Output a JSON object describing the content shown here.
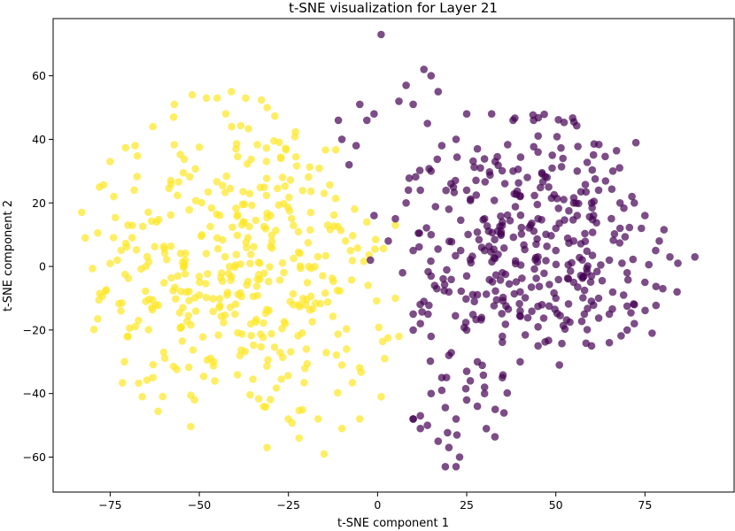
{
  "chart_data": {
    "type": "scatter",
    "title": "t-SNE visualization for Layer 21",
    "xlabel": "t-SNE component 1",
    "ylabel": "t-SNE component 2",
    "xlim": [
      -91,
      100
    ],
    "ylim": [
      -71,
      78
    ],
    "xticks": [
      -75,
      -50,
      -25,
      0,
      25,
      50,
      75
    ],
    "yticks": [
      -60,
      -40,
      -20,
      0,
      20,
      40,
      60
    ],
    "grid": false,
    "legend": "none",
    "series": [
      {
        "color": "#fde725",
        "count": 420,
        "x_mean": -38,
        "y_mean": 0,
        "x_spread": 22,
        "y_spread": 26,
        "points": [
          [
            -83,
            17
          ],
          [
            -82,
            9
          ],
          [
            -78,
            25
          ],
          [
            -75,
            33
          ],
          [
            -74,
            22
          ],
          [
            -73,
            2
          ],
          [
            -72,
            -14
          ],
          [
            -71,
            -30
          ],
          [
            -70,
            -22
          ],
          [
            -70,
            13
          ],
          [
            -68,
            38
          ],
          [
            -66,
            -41
          ],
          [
            -65,
            0
          ],
          [
            -63,
            -35
          ],
          [
            -60,
            -27
          ],
          [
            -57,
            51
          ],
          [
            -55,
            -19
          ],
          [
            -52,
            54
          ],
          [
            -48,
            53
          ],
          [
            -45,
            53
          ],
          [
            -41,
            55
          ],
          [
            -37,
            53
          ],
          [
            -31,
            50
          ],
          [
            -31,
            -57
          ],
          [
            -25,
            -48
          ],
          [
            -22,
            -54
          ],
          [
            -15,
            -59
          ],
          [
            -10,
            -51
          ],
          [
            -5,
            -48
          ],
          [
            1,
            -41
          ],
          [
            2,
            -29
          ],
          [
            5,
            -10
          ],
          [
            6,
            -22
          ],
          [
            5,
            13
          ],
          [
            -3,
            14
          ],
          [
            -9,
            8
          ],
          [
            -14,
            13
          ],
          [
            -15,
            23
          ],
          [
            -20,
            -26
          ],
          [
            -33,
            -4
          ],
          [
            -40,
            -15
          ],
          [
            -46,
            -30
          ],
          [
            -50,
            -9
          ],
          [
            -56,
            -3
          ],
          [
            -58,
            27
          ],
          [
            -62,
            14
          ],
          [
            -63,
            44
          ],
          [
            -65,
            -11
          ],
          [
            -45,
            9
          ],
          [
            -30,
            16
          ],
          [
            -22,
            -12
          ],
          [
            -10,
            -31
          ]
        ]
      },
      {
        "color": "#440154",
        "count": 430,
        "x_mean": 42,
        "y_mean": 5,
        "x_spread": 20,
        "y_spread": 28,
        "points": [
          [
            1,
            73
          ],
          [
            -11,
            46
          ],
          [
            -10,
            40
          ],
          [
            -8,
            32
          ],
          [
            -6,
            38
          ],
          [
            -5,
            51
          ],
          [
            -3,
            46
          ],
          [
            -1,
            48
          ],
          [
            -1,
            16
          ],
          [
            -2,
            2
          ],
          [
            10,
            -20
          ],
          [
            12,
            -18
          ],
          [
            13,
            -11
          ],
          [
            16,
            -6
          ],
          [
            18,
            -35
          ],
          [
            10,
            -48
          ],
          [
            12,
            -51
          ],
          [
            13,
            62
          ],
          [
            15,
            60
          ],
          [
            17,
            55
          ],
          [
            14,
            45
          ],
          [
            6,
            52
          ],
          [
            8,
            57
          ],
          [
            10,
            51
          ],
          [
            25,
            48
          ],
          [
            32,
            48
          ],
          [
            38,
            46
          ],
          [
            45,
            36
          ],
          [
            49,
            35
          ],
          [
            52,
            34
          ],
          [
            56,
            30
          ],
          [
            60,
            20
          ],
          [
            66,
            30
          ],
          [
            72,
            20
          ],
          [
            75,
            16
          ],
          [
            79,
            8
          ],
          [
            80,
            -7
          ],
          [
            82,
            3
          ],
          [
            84,
            -8
          ],
          [
            89,
            3
          ],
          [
            77,
            -21
          ],
          [
            72,
            -18
          ],
          [
            69,
            -9
          ],
          [
            65,
            -24
          ],
          [
            60,
            -25
          ],
          [
            51,
            -31
          ],
          [
            45,
            -19
          ],
          [
            40,
            -14
          ],
          [
            35,
            -22
          ],
          [
            33,
            -45
          ],
          [
            28,
            -44
          ],
          [
            26,
            -36
          ],
          [
            22,
            -48
          ],
          [
            20,
            -57
          ],
          [
            23,
            -60
          ],
          [
            22,
            -63
          ],
          [
            19,
            -63
          ],
          [
            17,
            -55
          ],
          [
            14,
            -50
          ],
          [
            12,
            -47
          ],
          [
            10,
            -48
          ],
          [
            15,
            -40
          ],
          [
            18,
            -39
          ],
          [
            25,
            -42
          ],
          [
            30,
            -40
          ],
          [
            28,
            -30
          ],
          [
            25,
            -20
          ],
          [
            20,
            -8
          ],
          [
            25,
            -3
          ],
          [
            30,
            5
          ],
          [
            35,
            14
          ],
          [
            40,
            22
          ],
          [
            45,
            15
          ],
          [
            50,
            5
          ],
          [
            55,
            -5
          ],
          [
            58,
            -15
          ],
          [
            62,
            -10
          ],
          [
            65,
            2
          ],
          [
            70,
            -2
          ],
          [
            72,
            -12
          ],
          [
            68,
            12
          ],
          [
            55,
            20
          ],
          [
            48,
            25
          ],
          [
            42,
            28
          ],
          [
            38,
            30
          ],
          [
            33,
            33
          ],
          [
            28,
            37
          ],
          [
            22,
            40
          ],
          [
            18,
            38
          ],
          [
            15,
            30
          ],
          [
            12,
            24
          ],
          [
            8,
            20
          ],
          [
            5,
            15
          ],
          [
            3,
            8
          ],
          [
            7,
            -2
          ],
          [
            10,
            5
          ],
          [
            15,
            10
          ],
          [
            20,
            18
          ],
          [
            25,
            24
          ],
          [
            30,
            15
          ],
          [
            35,
            -2
          ],
          [
            40,
            -8
          ],
          [
            45,
            3
          ],
          [
            50,
            12
          ],
          [
            55,
            8
          ],
          [
            60,
            -3
          ],
          [
            65,
            -15
          ],
          [
            70,
            -20
          ],
          [
            75,
            -5
          ],
          [
            78,
            5
          ],
          [
            74,
            12
          ],
          [
            68,
            20
          ],
          [
            62,
            24
          ],
          [
            56,
            16
          ],
          [
            50,
            -10
          ],
          [
            45,
            -25
          ],
          [
            40,
            -30
          ],
          [
            35,
            -35
          ],
          [
            30,
            -38
          ],
          [
            25,
            -33
          ],
          [
            20,
            -28
          ],
          [
            15,
            -22
          ],
          [
            10,
            -15
          ]
        ]
      }
    ]
  }
}
